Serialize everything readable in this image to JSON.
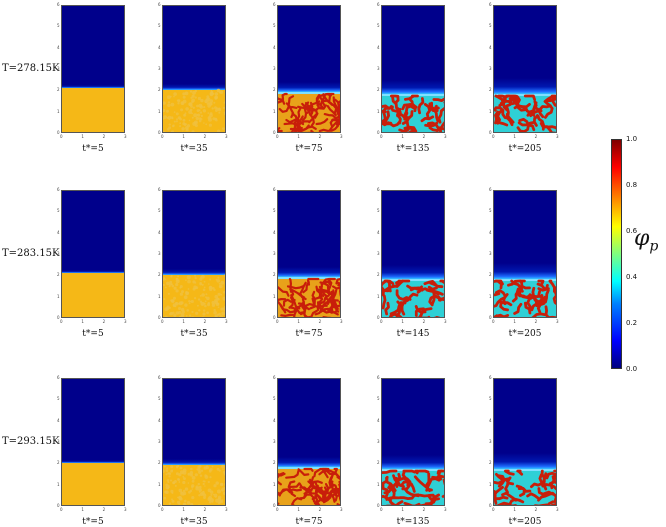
{
  "colors": {
    "gel_blue": "#00008b",
    "film_yellow": "#f5b817",
    "domain_red": "#c81e0a",
    "domain_cyan": "#2fd0d6"
  },
  "rows": [
    {
      "label": "T=278.15K",
      "times": [
        "t*=5",
        "t*=35",
        "t*=75",
        "t*=135",
        "t*=205"
      ]
    },
    {
      "label": "T=283.15K",
      "times": [
        "t*=5",
        "t*=35",
        "t*=75",
        "t*=145",
        "t*=205"
      ]
    },
    {
      "label": "T=293.15K",
      "times": [
        "t*=5",
        "t*=35",
        "t*=75",
        "t*=135",
        "t*=205"
      ]
    }
  ],
  "stages": [
    "uniform",
    "mottled",
    "early",
    "coarse",
    "coarse"
  ],
  "panel_axes": {
    "y_ticks": [
      "0",
      "1",
      "2",
      "3",
      "4",
      "5",
      "6"
    ],
    "x_ticks": [
      "0",
      "1",
      "2",
      "3"
    ]
  },
  "colorbar": {
    "ticks": [
      "0.0",
      "0.2",
      "0.4",
      "0.6",
      "0.8",
      "1.0"
    ],
    "symbol": "φ",
    "subscript": "p"
  }
}
